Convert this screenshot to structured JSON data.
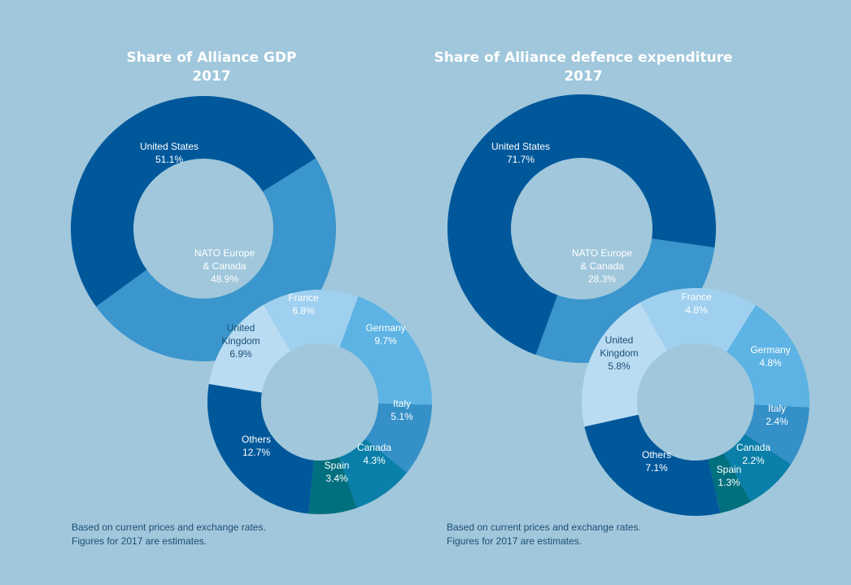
{
  "chart_data": [
    {
      "type": "pie",
      "title": "Share of Alliance GDP",
      "subtitle": "2017",
      "outer": [
        {
          "label": "United States",
          "value": 51.1,
          "display": "51.1%",
          "color": "#00589b"
        },
        {
          "label": "NATO Europe & Canada",
          "value": 48.9,
          "display": "48.9%",
          "color": "#3a96cc"
        }
      ],
      "breakdown_of": "NATO Europe & Canada",
      "inner": [
        {
          "label": "France",
          "value": 6.8,
          "display": "6.8%",
          "color": "#9fd0ef"
        },
        {
          "label": "Germany",
          "value": 9.7,
          "display": "9.7%",
          "color": "#5db3e3"
        },
        {
          "label": "Italy",
          "value": 5.1,
          "display": "5.1%",
          "color": "#3590c8"
        },
        {
          "label": "Canada",
          "value": 4.3,
          "display": "4.3%",
          "color": "#0a7fa9"
        },
        {
          "label": "Spain",
          "value": 3.4,
          "display": "3.4%",
          "color": "#00707f"
        },
        {
          "label": "Others",
          "value": 12.7,
          "display": "12.7%",
          "color": "#00589b"
        },
        {
          "label": "United Kingdom",
          "value": 6.9,
          "display": "6.9%",
          "color": "#b9dcf3"
        }
      ],
      "note": [
        "Based on current prices and exchange rates.",
        "Figures for 2017 are estimates."
      ]
    },
    {
      "type": "pie",
      "title": "Share of Alliance defence expenditure",
      "subtitle": "2017",
      "outer": [
        {
          "label": "United States",
          "value": 71.7,
          "display": "71.7%",
          "color": "#00589b"
        },
        {
          "label": "NATO Europe & Canada",
          "value": 28.3,
          "display": "28.3%",
          "color": "#3a96cc"
        }
      ],
      "breakdown_of": "NATO Europe & Canada",
      "inner": [
        {
          "label": "France",
          "value": 4.8,
          "display": "4.8%",
          "color": "#9fd0ef"
        },
        {
          "label": "Germany",
          "value": 4.8,
          "display": "4.8%",
          "color": "#5db3e3"
        },
        {
          "label": "Italy",
          "value": 2.4,
          "display": "2.4%",
          "color": "#3590c8"
        },
        {
          "label": "Canada",
          "value": 2.2,
          "display": "2.2%",
          "color": "#0a7fa9"
        },
        {
          "label": "Spain",
          "value": 1.3,
          "display": "1.3%",
          "color": "#00707f"
        },
        {
          "label": "Others",
          "value": 7.1,
          "display": "7.1%",
          "color": "#00589b"
        },
        {
          "label": "United Kingdom",
          "value": 5.8,
          "display": "5.8%",
          "color": "#b9dcf3"
        }
      ],
      "note": [
        "Based on current prices and exchange rates.",
        "Figures for 2017 are estimates."
      ]
    }
  ],
  "colors": {
    "background": "#a0c7db",
    "title": "#ffffff",
    "note": "#1d4f74",
    "dark_label": "#1d4f74"
  }
}
